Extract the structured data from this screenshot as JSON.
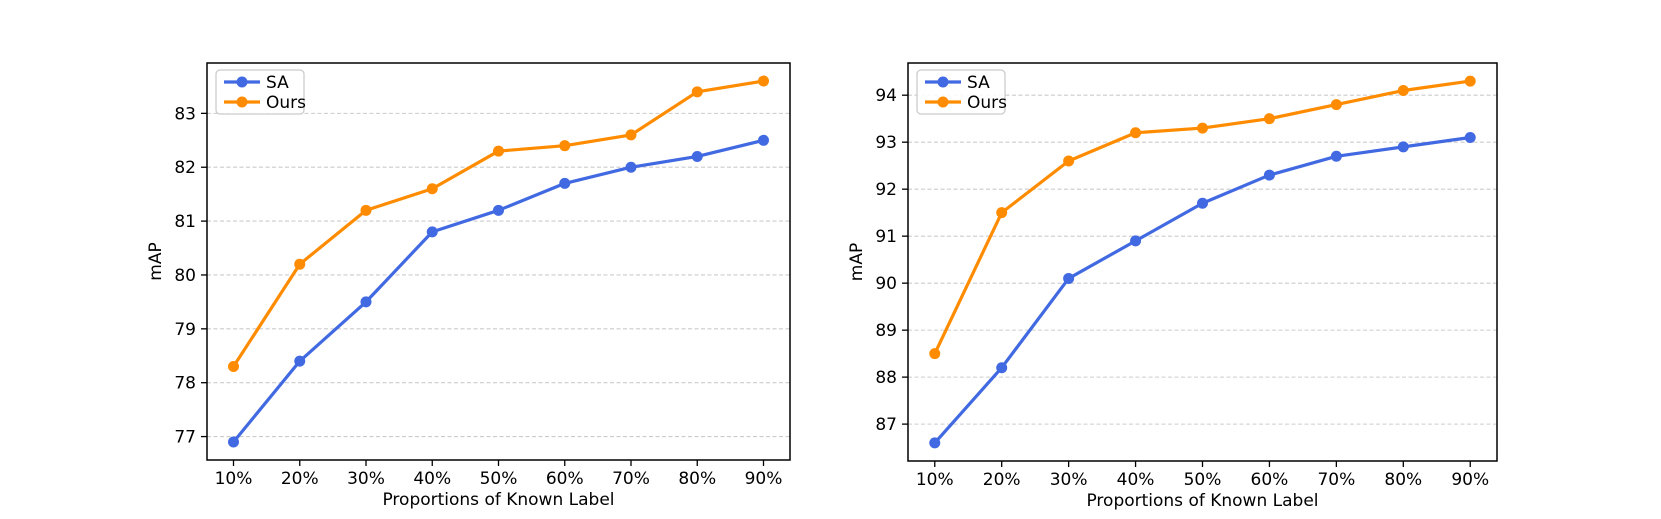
{
  "figure": {
    "background": "#ffffff",
    "text_color": "#000000",
    "axis_color": "#000000",
    "grid_color": "#cccccc",
    "legend_border_color": "#cccccc",
    "legend_background": "#ffffff"
  },
  "chart_data": [
    {
      "type": "line",
      "title": "",
      "xlabel": "Proportions of Known Label",
      "ylabel": "mAP",
      "categories": [
        "10%",
        "20%",
        "30%",
        "40%",
        "50%",
        "60%",
        "70%",
        "80%",
        "90%"
      ],
      "x": [
        10,
        20,
        30,
        40,
        50,
        60,
        70,
        80,
        90
      ],
      "series": [
        {
          "name": "SA",
          "color": "#4169E1",
          "values": [
            76.9,
            78.4,
            79.5,
            80.8,
            81.2,
            81.7,
            82.0,
            82.2,
            82.5
          ]
        },
        {
          "name": "Ours",
          "color": "#FF8C00",
          "values": [
            78.3,
            80.2,
            81.2,
            81.6,
            82.3,
            82.4,
            82.6,
            83.4,
            83.6
          ]
        }
      ],
      "xlim": [
        6,
        94
      ],
      "ylim": [
        76.565,
        83.935
      ],
      "yticks": [
        77,
        78,
        79,
        80,
        81,
        82,
        83
      ],
      "grid": "y-only-dashed",
      "legend_position": "upper-left",
      "legend_entries": [
        "SA",
        "Ours"
      ]
    },
    {
      "type": "line",
      "title": "",
      "xlabel": "Proportions of Known Label",
      "ylabel": "mAP",
      "categories": [
        "10%",
        "20%",
        "30%",
        "40%",
        "50%",
        "60%",
        "70%",
        "80%",
        "90%"
      ],
      "x": [
        10,
        20,
        30,
        40,
        50,
        60,
        70,
        80,
        90
      ],
      "series": [
        {
          "name": "SA",
          "color": "#4169E1",
          "values": [
            86.6,
            88.2,
            90.1,
            90.9,
            91.7,
            92.3,
            92.7,
            92.9,
            93.1
          ]
        },
        {
          "name": "Ours",
          "color": "#FF8C00",
          "values": [
            88.5,
            91.5,
            92.6,
            93.2,
            93.3,
            93.5,
            93.8,
            94.1,
            94.3
          ]
        }
      ],
      "xlim": [
        6,
        94
      ],
      "ylim": [
        86.215,
        94.685
      ],
      "yticks": [
        87,
        88,
        89,
        90,
        91,
        92,
        93,
        94
      ],
      "grid": "y-only-dashed",
      "legend_position": "upper-left",
      "legend_entries": [
        "SA",
        "Ours"
      ]
    }
  ]
}
